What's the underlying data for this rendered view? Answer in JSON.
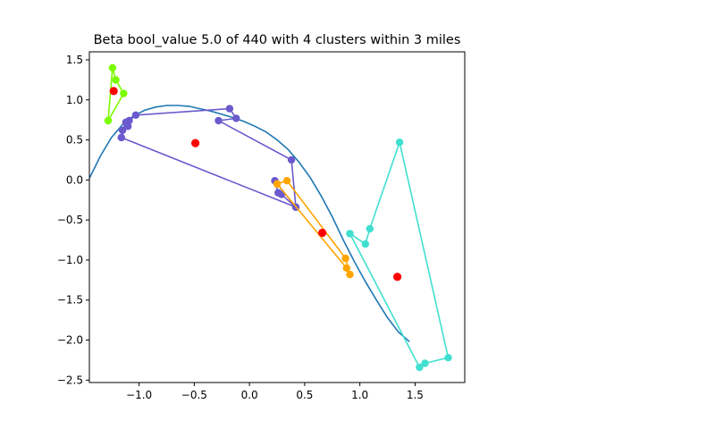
{
  "chart_data": {
    "type": "scatter",
    "title": "Beta bool_value 5.0 of 440 with 4 clusters within 3 miles",
    "xlabel": "",
    "ylabel": "",
    "xlim": [
      -1.45,
      1.95
    ],
    "ylim": [
      -2.53,
      1.6
    ],
    "xticks": [
      -1.0,
      -0.5,
      0.0,
      0.5,
      1.0,
      1.5
    ],
    "xtick_labels": [
      "−1.0",
      "−0.5",
      "0.0",
      "0.5",
      "1.0",
      "1.5"
    ],
    "yticks": [
      -2.5,
      -2.0,
      -1.5,
      -1.0,
      -0.5,
      0.0,
      0.5,
      1.0,
      1.5
    ],
    "ytick_labels": [
      "−2.5",
      "−2.0",
      "−1.5",
      "−1.0",
      "−0.5",
      "0.0",
      "0.5",
      "1.0",
      "1.5"
    ],
    "grid": false,
    "curve": {
      "color": "#1f77b4",
      "x": [
        -1.45,
        -1.35,
        -1.25,
        -1.15,
        -1.05,
        -0.95,
        -0.85,
        -0.75,
        -0.65,
        -0.55,
        -0.45,
        -0.35,
        -0.25,
        -0.15,
        -0.05,
        0.05,
        0.15,
        0.25,
        0.35,
        0.45,
        0.55,
        0.65,
        0.75,
        0.85,
        0.95,
        1.05,
        1.15,
        1.25,
        1.35,
        1.45
      ],
      "y": [
        0.02,
        0.3,
        0.53,
        0.69,
        0.8,
        0.87,
        0.91,
        0.93,
        0.93,
        0.92,
        0.89,
        0.86,
        0.82,
        0.78,
        0.73,
        0.67,
        0.6,
        0.5,
        0.38,
        0.22,
        0.03,
        -0.2,
        -0.46,
        -0.75,
        -1.02,
        -1.27,
        -1.5,
        -1.72,
        -1.9,
        -2.02
      ]
    },
    "clusters": [
      {
        "color": "#7cfc00",
        "points": [
          [
            -1.28,
            0.74
          ],
          [
            -1.24,
            1.4
          ],
          [
            -1.21,
            1.25
          ],
          [
            -1.14,
            1.08
          ],
          [
            -1.28,
            0.74
          ]
        ],
        "centroid": [
          -1.23,
          1.11
        ]
      },
      {
        "color": "#6a5acd",
        "points": [
          [
            -1.16,
            0.53
          ],
          [
            -1.15,
            0.62
          ],
          [
            -1.12,
            0.72
          ],
          [
            -1.1,
            0.67
          ],
          [
            -1.09,
            0.74
          ],
          [
            -1.03,
            0.81
          ],
          [
            -0.18,
            0.89
          ],
          [
            -0.12,
            0.77
          ],
          [
            -0.28,
            0.74
          ],
          [
            0.38,
            0.25
          ],
          [
            0.42,
            -0.34
          ],
          [
            0.29,
            -0.18
          ],
          [
            0.26,
            -0.16
          ],
          [
            0.23,
            -0.01
          ],
          [
            0.42,
            -0.34
          ],
          [
            -1.16,
            0.53
          ]
        ],
        "centroid": [
          -0.49,
          0.46
        ]
      },
      {
        "color": "#ffa500",
        "points": [
          [
            0.25,
            -0.05
          ],
          [
            0.34,
            -0.01
          ],
          [
            0.87,
            -0.98
          ],
          [
            0.91,
            -1.18
          ],
          [
            0.88,
            -1.1
          ],
          [
            0.25,
            -0.05
          ]
        ],
        "centroid": [
          0.66,
          -0.66
        ]
      },
      {
        "color": "#40e0d0",
        "points": [
          [
            0.91,
            -0.67
          ],
          [
            1.05,
            -0.8
          ],
          [
            1.09,
            -0.61
          ],
          [
            1.36,
            0.47
          ],
          [
            1.8,
            -2.22
          ],
          [
            1.59,
            -2.29
          ],
          [
            1.54,
            -2.34
          ],
          [
            0.91,
            -0.67
          ]
        ],
        "centroid": [
          1.34,
          -1.21
        ]
      }
    ],
    "centroid_color": "#ff0000"
  }
}
